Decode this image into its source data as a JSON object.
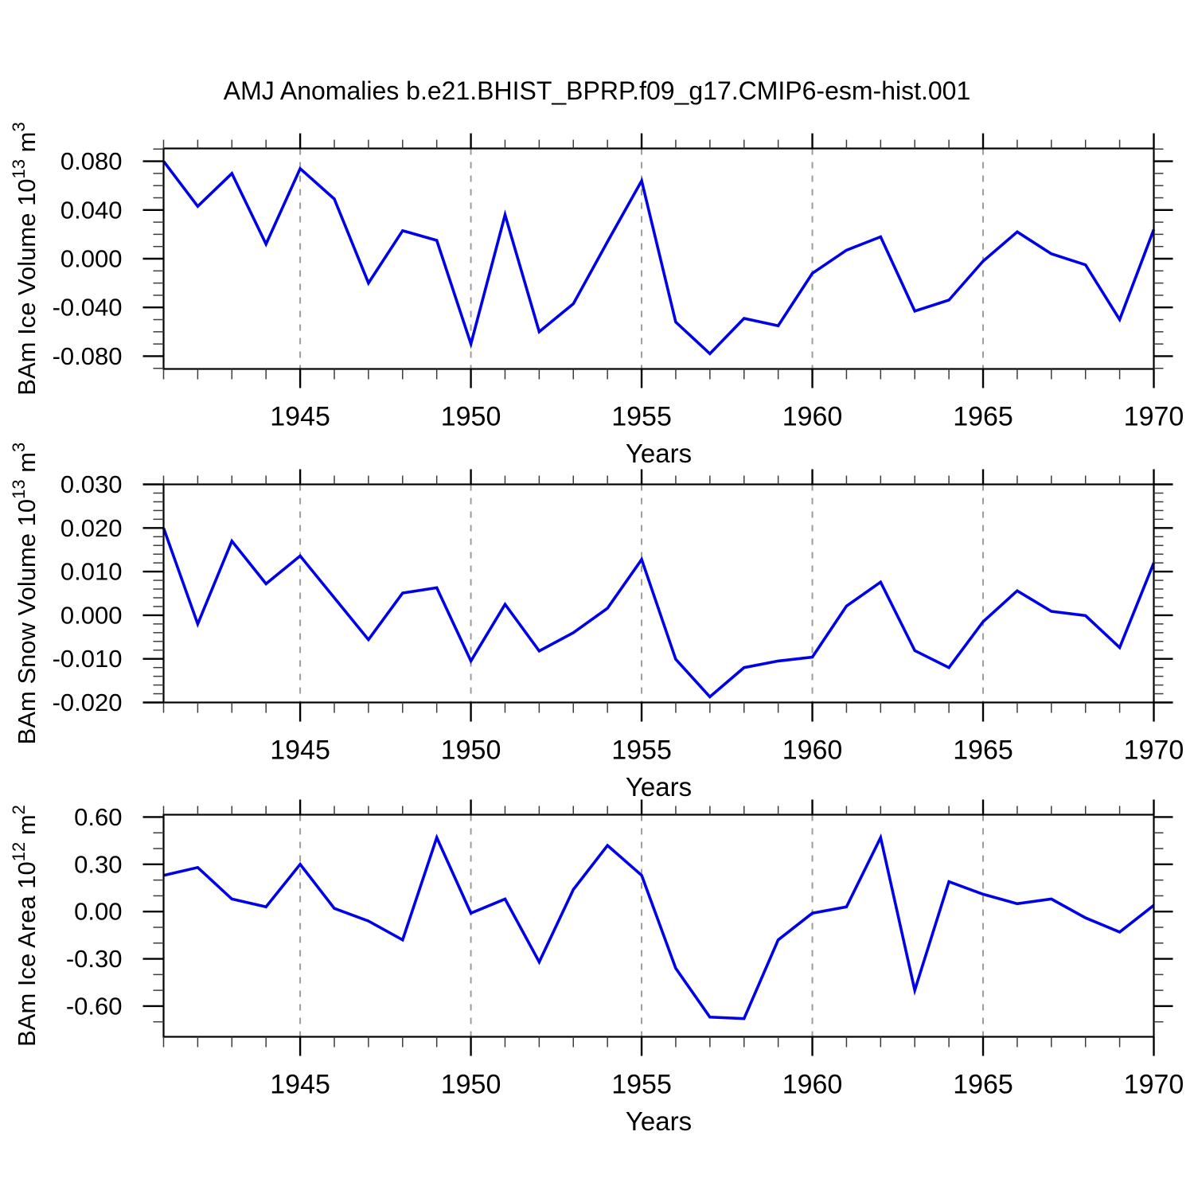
{
  "page": {
    "title": "AMJ Anomalies b.e21.BHIST_BPRP.f09_g17.CMIP6-esm-hist.001",
    "background": "#ffffff"
  },
  "style": {
    "line_color": "#0000e8",
    "grid_color": "#9c9c9c",
    "frame_color": "#000000",
    "major_tick_color": "#000000",
    "minor_tick_color": "#3c3c3c",
    "text_color": "#000000"
  },
  "chart_data": [
    {
      "type": "line",
      "ylabel": "BAm Ice Volume 10^13 m^3",
      "ylabel_parts": [
        {
          "t": "BAm Ice Volume 10"
        },
        {
          "t": "13",
          "sup": true
        },
        {
          "t": " m"
        },
        {
          "t": "3",
          "sup": true
        }
      ],
      "xlabel": "Years",
      "x": [
        1941,
        1942,
        1943,
        1944,
        1945,
        1946,
        1947,
        1948,
        1949,
        1950,
        1951,
        1952,
        1953,
        1954,
        1955,
        1956,
        1957,
        1958,
        1959,
        1960,
        1961,
        1962,
        1963,
        1964,
        1965,
        1966,
        1967,
        1968,
        1969,
        1970
      ],
      "values": [
        0.08,
        0.043,
        0.07,
        0.012,
        0.074,
        0.049,
        -0.02,
        0.023,
        0.015,
        -0.07,
        0.036,
        -0.06,
        -0.037,
        0.014,
        0.064,
        -0.052,
        -0.078,
        -0.049,
        -0.055,
        -0.012,
        0.007,
        0.018,
        -0.043,
        -0.034,
        -0.002,
        0.022,
        0.004,
        -0.005,
        -0.05,
        0.024
      ],
      "xlim": [
        1941,
        1970
      ],
      "ylim": [
        -0.0905,
        0.0905
      ],
      "y_ticks": [
        {
          "v": 0.08,
          "label": "0.080"
        },
        {
          "v": 0.04,
          "label": "0.040"
        },
        {
          "v": 0.0,
          "label": "0.000"
        },
        {
          "v": -0.04,
          "label": "-0.040"
        },
        {
          "v": -0.08,
          "label": "-0.080"
        }
      ],
      "y_minor_step": 0.01,
      "x_major_ticks": [
        1945,
        1950,
        1955,
        1960,
        1965,
        1970
      ],
      "x_tick_labels": [
        "1945",
        "1950",
        "1955",
        "1960",
        "1965",
        "1970"
      ],
      "grid_years": [
        1945,
        1950,
        1955,
        1960,
        1965
      ],
      "grid_on": true,
      "legend": "none"
    },
    {
      "type": "line",
      "ylabel": "BAm Snow Volume 10^13 m^3",
      "ylabel_parts": [
        {
          "t": "BAm Snow Volume 10"
        },
        {
          "t": "13",
          "sup": true
        },
        {
          "t": " m"
        },
        {
          "t": "3",
          "sup": true
        }
      ],
      "xlabel": "Years",
      "x": [
        1941,
        1942,
        1943,
        1944,
        1945,
        1946,
        1947,
        1948,
        1949,
        1950,
        1951,
        1952,
        1953,
        1954,
        1955,
        1956,
        1957,
        1958,
        1959,
        1960,
        1961,
        1962,
        1963,
        1964,
        1965,
        1966,
        1967,
        1968,
        1969,
        1970
      ],
      "values": [
        0.02,
        -0.002,
        0.017,
        0.0072,
        0.0136,
        0.004,
        -0.0056,
        0.0051,
        0.0063,
        -0.0105,
        0.0025,
        -0.0082,
        -0.004,
        0.0016,
        0.0128,
        -0.0101,
        -0.0187,
        -0.012,
        -0.0105,
        -0.0096,
        0.0021,
        0.0076,
        -0.0081,
        -0.012,
        -0.0015,
        0.0056,
        0.0009,
        -0.0001,
        -0.0074,
        0.012
      ],
      "xlim": [
        1941,
        1970
      ],
      "ylim": [
        -0.02,
        0.03
      ],
      "y_ticks": [
        {
          "v": 0.03,
          "label": "0.030"
        },
        {
          "v": 0.02,
          "label": "0.020"
        },
        {
          "v": 0.01,
          "label": "0.010"
        },
        {
          "v": 0.0,
          "label": "0.000"
        },
        {
          "v": -0.01,
          "label": "-0.010"
        },
        {
          "v": -0.02,
          "label": "-0.020"
        }
      ],
      "y_minor_step": 0.002,
      "x_major_ticks": [
        1945,
        1950,
        1955,
        1960,
        1965,
        1970
      ],
      "x_tick_labels": [
        "1945",
        "1950",
        "1955",
        "1960",
        "1965",
        "1970"
      ],
      "grid_years": [
        1945,
        1950,
        1955,
        1960,
        1965
      ],
      "grid_on": true,
      "legend": "none"
    },
    {
      "type": "line",
      "ylabel": "BAm Ice Area 10^12 m^2",
      "ylabel_parts": [
        {
          "t": "BAm Ice Area 10"
        },
        {
          "t": "12",
          "sup": true
        },
        {
          "t": " m"
        },
        {
          "t": "2",
          "sup": true
        }
      ],
      "xlabel": "Years",
      "x": [
        1941,
        1942,
        1943,
        1944,
        1945,
        1946,
        1947,
        1948,
        1949,
        1950,
        1951,
        1952,
        1953,
        1954,
        1955,
        1956,
        1957,
        1958,
        1959,
        1960,
        1961,
        1962,
        1963,
        1964,
        1965,
        1966,
        1967,
        1968,
        1969,
        1970
      ],
      "values": [
        0.23,
        0.28,
        0.08,
        0.03,
        0.3,
        0.02,
        -0.06,
        -0.18,
        0.47,
        -0.01,
        0.08,
        -0.32,
        0.14,
        0.42,
        0.23,
        -0.36,
        -0.67,
        -0.68,
        -0.18,
        -0.01,
        0.03,
        0.47,
        -0.5,
        0.19,
        0.11,
        0.05,
        0.08,
        -0.04,
        -0.13,
        0.04
      ],
      "xlim": [
        1941,
        1970
      ],
      "ylim": [
        -0.795,
        0.615
      ],
      "y_ticks": [
        {
          "v": 0.6,
          "label": "0.60"
        },
        {
          "v": 0.3,
          "label": "0.30"
        },
        {
          "v": 0.0,
          "label": "0.00"
        },
        {
          "v": -0.3,
          "label": "-0.30"
        },
        {
          "v": -0.6,
          "label": "-0.60"
        }
      ],
      "y_minor_step": 0.1,
      "x_major_ticks": [
        1945,
        1950,
        1955,
        1960,
        1965,
        1970
      ],
      "x_tick_labels": [
        "1945",
        "1950",
        "1955",
        "1960",
        "1965",
        "1970"
      ],
      "grid_years": [
        1945,
        1950,
        1955,
        1960,
        1965
      ],
      "grid_on": true,
      "legend": "none"
    }
  ]
}
